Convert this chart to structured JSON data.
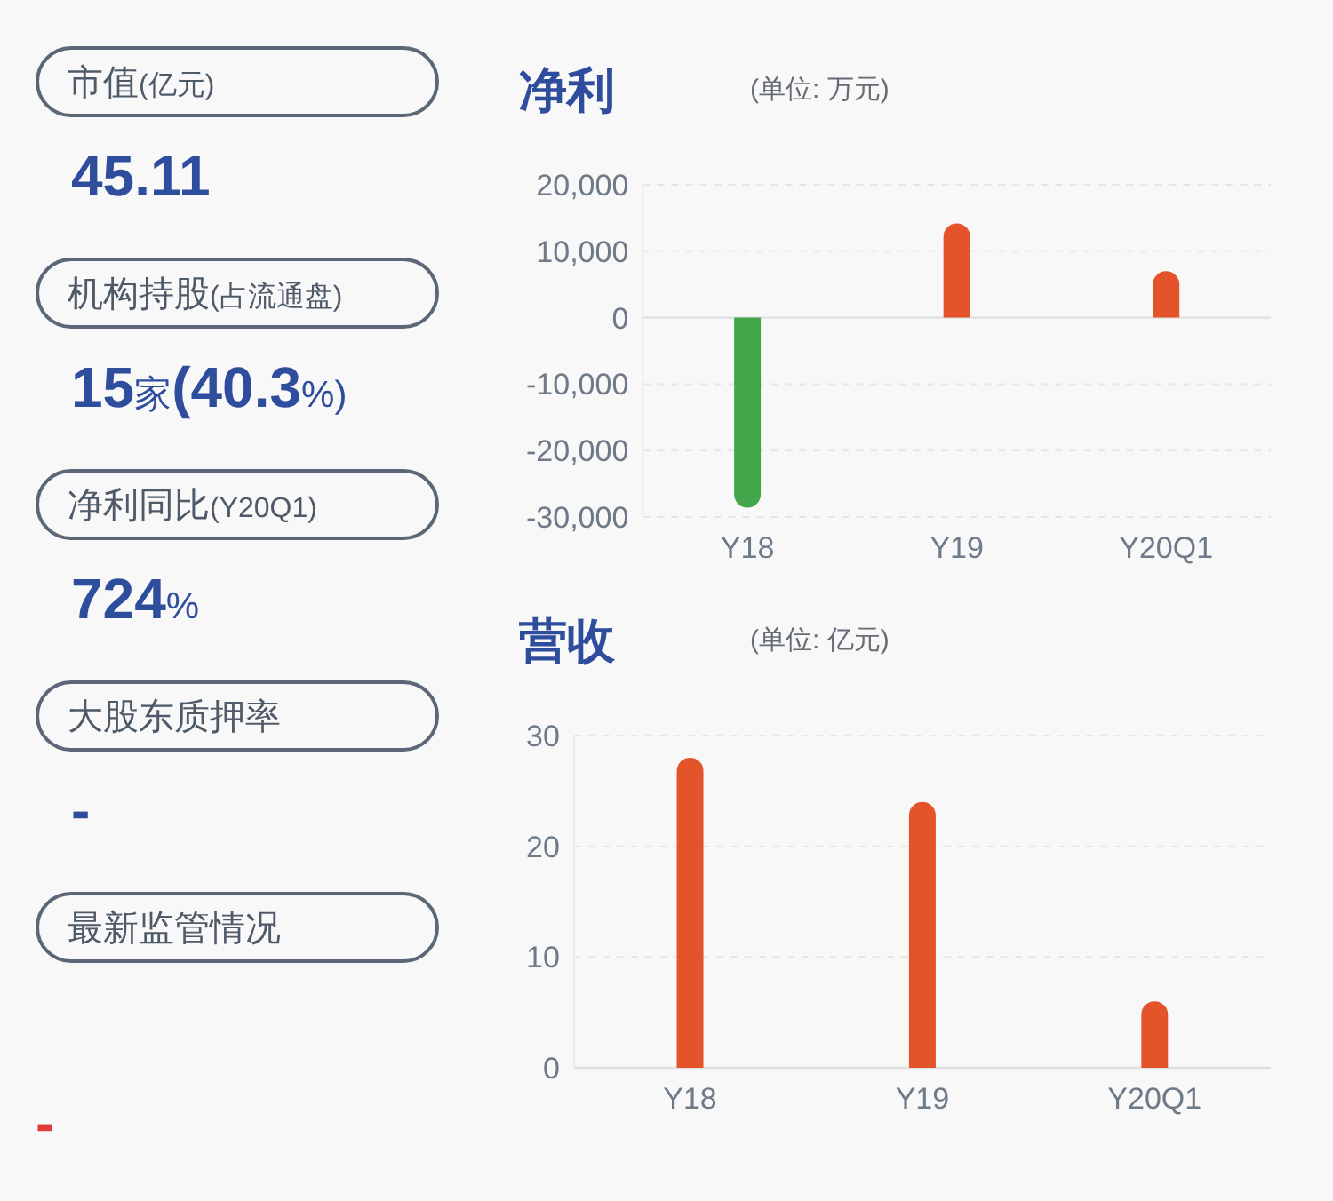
{
  "chart_data": [
    {
      "type": "other",
      "categories": [
        "市值(亿元)",
        "机构持股(占流通盘)",
        "净利同比(Y20Q1)",
        "大股东质押率",
        "最新监管情况"
      ],
      "value_labels": [
        "45.11",
        "15家(40.3%)",
        "724%",
        "-",
        "-"
      ],
      "colors": [
        "#2e4d9c",
        "#2e4d9c",
        "#2e4d9c",
        "#2e4d9c",
        "#e03a3a"
      ]
    },
    {
      "type": "bar",
      "title": "净利",
      "subtitle": "(单位: 万元)",
      "categories": [
        "Y18",
        "Y19",
        "Y20Q1"
      ],
      "values": [
        -28600,
        14200,
        7000
      ],
      "colors": [
        "#44a64a",
        "#e4542a",
        "#e4542a"
      ],
      "ylim": [
        -30000,
        20000
      ],
      "yticks": [
        {
          "value": -30000,
          "label": "-30,000"
        },
        {
          "value": -20000,
          "label": "-20,000"
        },
        {
          "value": -10000,
          "label": "-10,000"
        },
        0,
        {
          "value": 10000,
          "label": "10,000"
        },
        {
          "value": 20000,
          "label": "20,000"
        }
      ],
      "grid": "y"
    },
    {
      "type": "bar",
      "title": "营收",
      "subtitle": "(单位: 亿元)",
      "categories": [
        "Y18",
        "Y19",
        "Y20Q1"
      ],
      "values": [
        28,
        24,
        6
      ],
      "colors": [
        "#e4542a",
        "#e4542a",
        "#e4542a"
      ],
      "ylim": [
        0,
        30
      ],
      "yticks": [
        0,
        10,
        20,
        30
      ],
      "grid": "y"
    }
  ]
}
